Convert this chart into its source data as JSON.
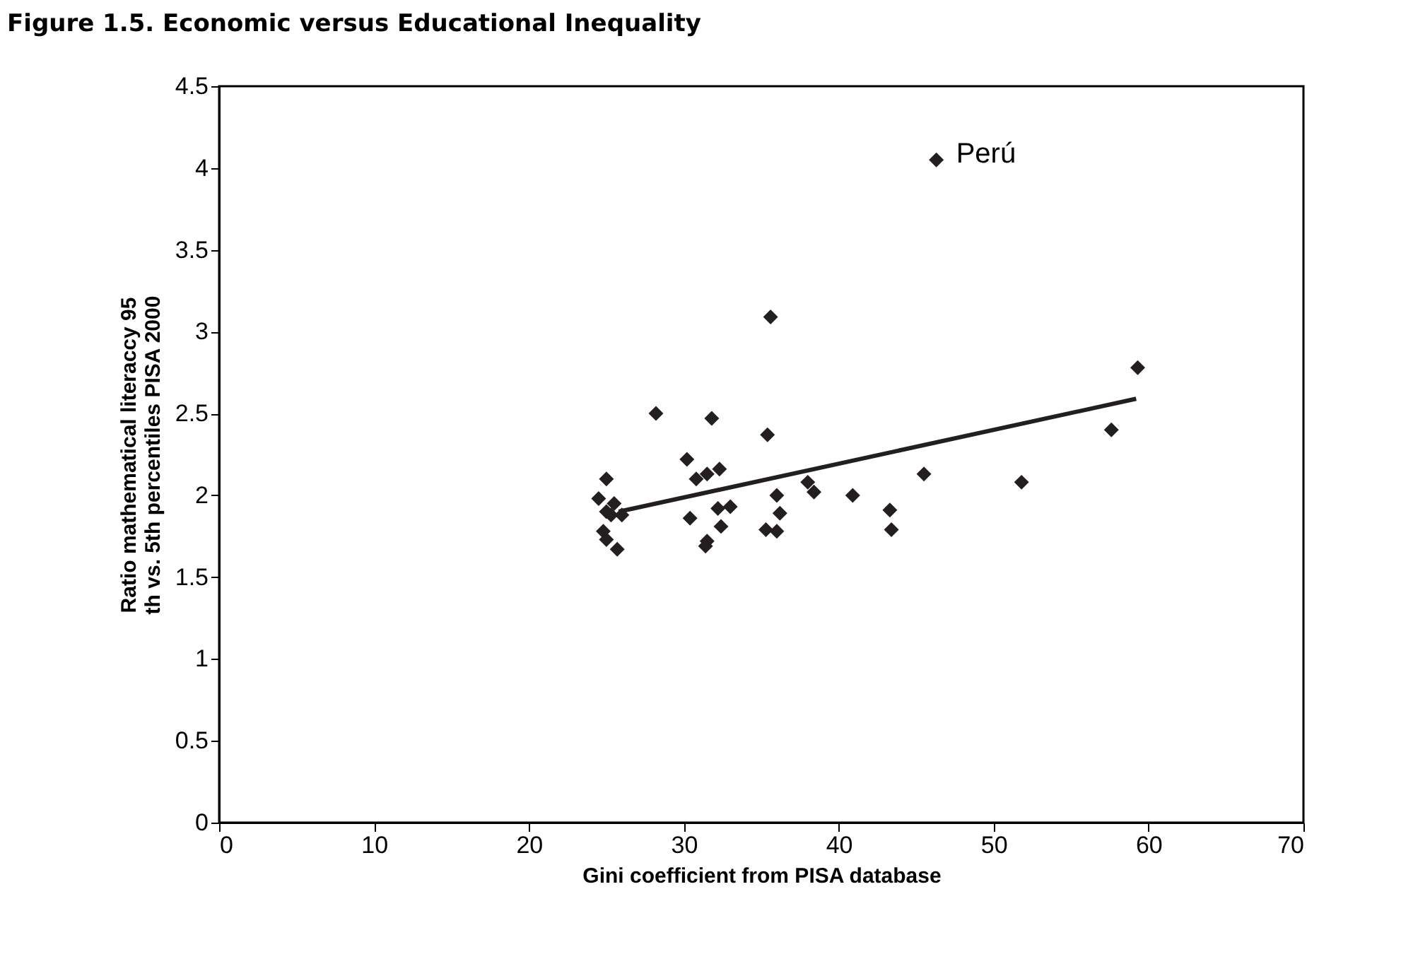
{
  "chart_data": {
    "type": "scatter",
    "title": "Figure 1.5.  Economic versus Educational Inequality",
    "xlabel": "Gini coefficient from PISA database",
    "ylabel": "Ratio mathematical literaccy 95 th vs. 5th percentiles PISA 2000",
    "series": [
      {
        "color": "#231f20",
        "x": [
          24.5,
          25,
          25,
          25.5,
          24.8,
          25,
          25.7,
          26,
          25.3,
          28.2,
          30.2,
          30.4,
          30.8,
          31.5,
          31.5,
          31.4,
          31.8,
          32.2,
          32.3,
          32.4,
          33,
          35.4,
          35.6,
          35.3,
          36,
          36,
          36.2,
          38,
          38.4,
          40.9,
          43.3,
          43.4,
          45.5,
          51.8,
          57.6,
          59.3,
          46.3
        ],
        "values": [
          1.98,
          2.1,
          1.9,
          1.95,
          1.78,
          1.73,
          1.67,
          1.88,
          1.88,
          2.5,
          2.22,
          1.86,
          2.1,
          2.13,
          1.72,
          1.69,
          2.47,
          1.92,
          2.16,
          1.81,
          1.93,
          2.37,
          3.09,
          1.79,
          2.0,
          1.78,
          1.89,
          2.08,
          2.02,
          2.0,
          1.91,
          1.79,
          2.13,
          2.08,
          2.4,
          2.78,
          4.05
        ]
      },
      {
        "type": "line",
        "marker": "none",
        "color": "#231f20",
        "x": [
          25.8,
          59.2
        ],
        "values": [
          1.9,
          2.59
        ]
      }
    ],
    "annotations": [
      {
        "text": "Perú",
        "x": 46.3,
        "y": 4.05
      }
    ],
    "xlim": [
      0,
      70
    ],
    "xticks": [
      0,
      10,
      20,
      30,
      40,
      50,
      60,
      70
    ],
    "ylim": [
      0,
      4.5
    ],
    "yticks": [
      0,
      0.5,
      1,
      1.5,
      2,
      2.5,
      3,
      3.5,
      4,
      4.5
    ],
    "marker": "diamond",
    "grid": false
  }
}
